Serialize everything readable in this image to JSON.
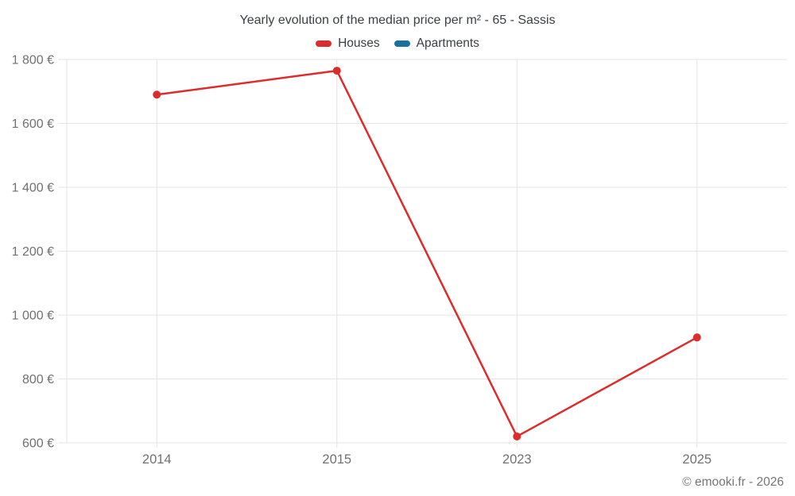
{
  "watermark": "© emooki.fr - 2026",
  "chart_data": {
    "type": "line",
    "title": "Yearly evolution of the median price per m² - 65 - Sassis",
    "categories": [
      "2014",
      "2015",
      "2023",
      "2025"
    ],
    "series": [
      {
        "name": "Houses",
        "color": "#dd2c2c",
        "values": [
          1690,
          1765,
          620,
          930
        ]
      },
      {
        "name": "Apartments",
        "color": "#17719f",
        "values": [
          null,
          null,
          null,
          null
        ]
      }
    ],
    "ylim": [
      600,
      1800
    ],
    "ytick_step": 200,
    "yticks": [
      {
        "value": 600,
        "label": "600 €"
      },
      {
        "value": 800,
        "label": "800 €"
      },
      {
        "value": 1000,
        "label": "1 000 €"
      },
      {
        "value": 1200,
        "label": "1 200 €"
      },
      {
        "value": 1400,
        "label": "1 400 €"
      },
      {
        "value": 1600,
        "label": "1 600 €"
      },
      {
        "value": 1800,
        "label": "1 800 €"
      }
    ],
    "xlabel": "",
    "ylabel": "",
    "grid": true,
    "legend_position": "top",
    "colors": {
      "grid": "#e4e4e4",
      "tick_text": "#717171",
      "title_text": "#3c4043"
    }
  }
}
